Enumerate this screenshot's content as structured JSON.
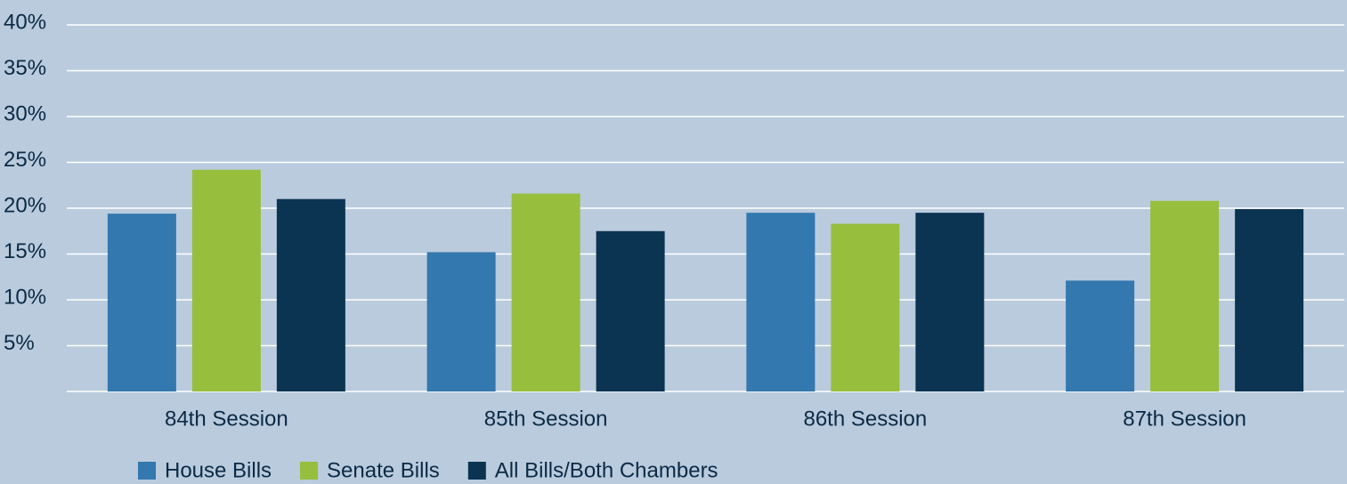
{
  "chart_data": {
    "type": "bar",
    "categories": [
      "84th Session",
      "85th Session",
      "86th Session",
      "87th Session"
    ],
    "series": [
      {
        "name": "House Bills",
        "color": "#3378ae",
        "values": [
          19.4,
          15.2,
          19.5,
          12.1
        ]
      },
      {
        "name": "Senate Bills",
        "color": "#97be3d",
        "values": [
          24.2,
          21.6,
          18.3,
          20.8
        ]
      },
      {
        "name": "All Bills/Both Chambers",
        "color": "#0b3352",
        "values": [
          21.0,
          17.5,
          19.5,
          19.9
        ]
      }
    ],
    "ylim": [
      0,
      40
    ],
    "yticks": [
      {
        "value": 5,
        "label": "5%"
      },
      {
        "value": 10,
        "label": "10%"
      },
      {
        "value": 15,
        "label": "15%"
      },
      {
        "value": 20,
        "label": "20%"
      },
      {
        "value": 25,
        "label": "25%"
      },
      {
        "value": 30,
        "label": "30%"
      },
      {
        "value": 35,
        "label": "35%"
      },
      {
        "value": 40,
        "label": "40%"
      }
    ],
    "grid": true
  }
}
